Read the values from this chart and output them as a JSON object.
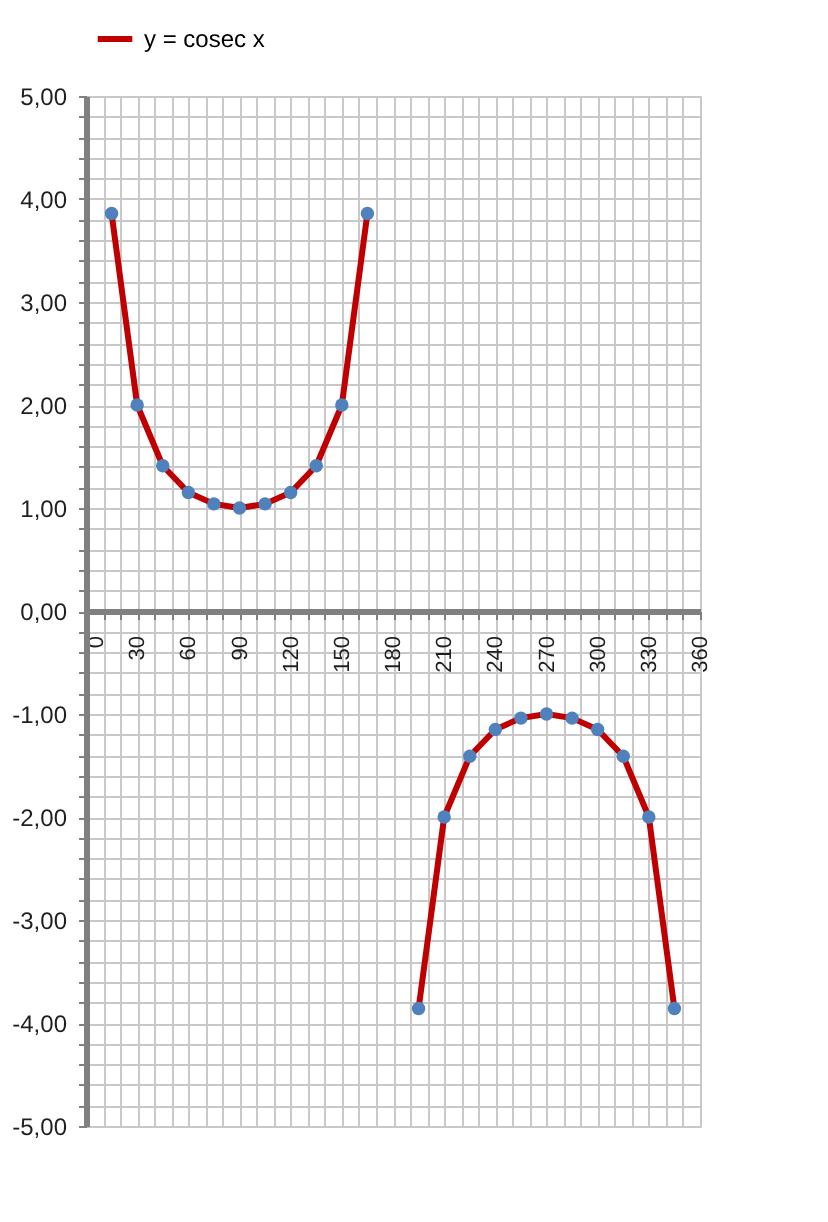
{
  "chart_data": {
    "type": "line",
    "legend": "top",
    "grid": true,
    "marker": "circle",
    "line_style": "solid",
    "x": [
      15,
      30,
      45,
      60,
      75,
      90,
      105,
      120,
      135,
      150,
      165,
      180,
      195,
      210,
      225,
      240,
      255,
      270,
      285,
      300,
      315,
      330,
      345
    ],
    "series": [
      {
        "name": "y = cosec x",
        "color": "#c00000",
        "values": [
          3.86,
          2,
          1.41,
          1.15,
          1.04,
          1,
          1.04,
          1.15,
          1.41,
          2,
          3.86,
          null,
          -3.86,
          -2,
          -1.41,
          -1.15,
          -1.04,
          -1,
          -1.04,
          -1.15,
          -1.41,
          -2,
          -3.86
        ]
      }
    ],
    "xlim": [
      0,
      360
    ],
    "ylim": [
      -5,
      5
    ],
    "xticks": [
      0,
      {
        "value": 10,
        "label": null
      },
      {
        "value": 20,
        "label": null
      },
      30,
      {
        "value": 40,
        "label": null
      },
      {
        "value": 50,
        "label": null
      },
      60,
      {
        "value": 70,
        "label": null
      },
      {
        "value": 80,
        "label": null
      },
      90,
      {
        "value": 100,
        "label": null
      },
      {
        "value": 110,
        "label": null
      },
      120,
      {
        "value": 130,
        "label": null
      },
      {
        "value": 140,
        "label": null
      },
      150,
      {
        "value": 160,
        "label": null
      },
      {
        "value": 170,
        "label": null
      },
      180,
      {
        "value": 190,
        "label": null
      },
      {
        "value": 200,
        "label": null
      },
      210,
      {
        "value": 220,
        "label": null
      },
      {
        "value": 230,
        "label": null
      },
      240,
      {
        "value": 250,
        "label": null
      },
      {
        "value": 260,
        "label": null
      },
      270,
      {
        "value": 280,
        "label": null
      },
      {
        "value": 290,
        "label": null
      },
      300,
      {
        "value": 310,
        "label": null
      },
      {
        "value": 320,
        "label": null
      },
      330,
      {
        "value": 340,
        "label": null
      },
      {
        "value": 350,
        "label": null
      },
      360
    ],
    "yticks": [
      {
        "value": -5,
        "label": "-5,00"
      },
      {
        "value": -4.8,
        "label": null
      },
      {
        "value": -4.6,
        "label": null
      },
      {
        "value": -4.4,
        "label": null
      },
      {
        "value": -4.2,
        "label": null
      },
      {
        "value": -4,
        "label": "-4,00"
      },
      {
        "value": -3.8,
        "label": null
      },
      {
        "value": -3.6,
        "label": null
      },
      {
        "value": -3.4,
        "label": null
      },
      {
        "value": -3.2,
        "label": null
      },
      {
        "value": -3,
        "label": "-3,00"
      },
      {
        "value": -2.8,
        "label": null
      },
      {
        "value": -2.6,
        "label": null
      },
      {
        "value": -2.4,
        "label": null
      },
      {
        "value": -2.2,
        "label": null
      },
      {
        "value": -2,
        "label": "-2,00"
      },
      {
        "value": -1.8,
        "label": null
      },
      {
        "value": -1.6,
        "label": null
      },
      {
        "value": -1.4,
        "label": null
      },
      {
        "value": -1.2,
        "label": null
      },
      {
        "value": -1,
        "label": "-1,00"
      },
      {
        "value": -0.8,
        "label": null
      },
      {
        "value": -0.6,
        "label": null
      },
      {
        "value": -0.4,
        "label": null
      },
      {
        "value": -0.2,
        "label": null
      },
      {
        "value": 0,
        "label": "0,00"
      },
      {
        "value": 0.2,
        "label": null
      },
      {
        "value": 0.4,
        "label": null
      },
      {
        "value": 0.6,
        "label": null
      },
      {
        "value": 0.8,
        "label": null
      },
      {
        "value": 1,
        "label": "1,00"
      },
      {
        "value": 1.2,
        "label": null
      },
      {
        "value": 1.4,
        "label": null
      },
      {
        "value": 1.6,
        "label": null
      },
      {
        "value": 1.8,
        "label": null
      },
      {
        "value": 2,
        "label": "2,00"
      },
      {
        "value": 2.2,
        "label": null
      },
      {
        "value": 2.4,
        "label": null
      },
      {
        "value": 2.6,
        "label": null
      },
      {
        "value": 2.8,
        "label": null
      },
      {
        "value": 3,
        "label": "3,00"
      },
      {
        "value": 3.2,
        "label": null
      },
      {
        "value": 3.4,
        "label": null
      },
      {
        "value": 3.6,
        "label": null
      },
      {
        "value": 3.8,
        "label": null
      },
      {
        "value": 4,
        "label": "4,00"
      },
      {
        "value": 4.2,
        "label": null
      },
      {
        "value": 4.4,
        "label": null
      },
      {
        "value": 4.6,
        "label": null
      },
      {
        "value": 4.8,
        "label": null
      },
      {
        "value": 5,
        "label": "5,00"
      }
    ]
  }
}
